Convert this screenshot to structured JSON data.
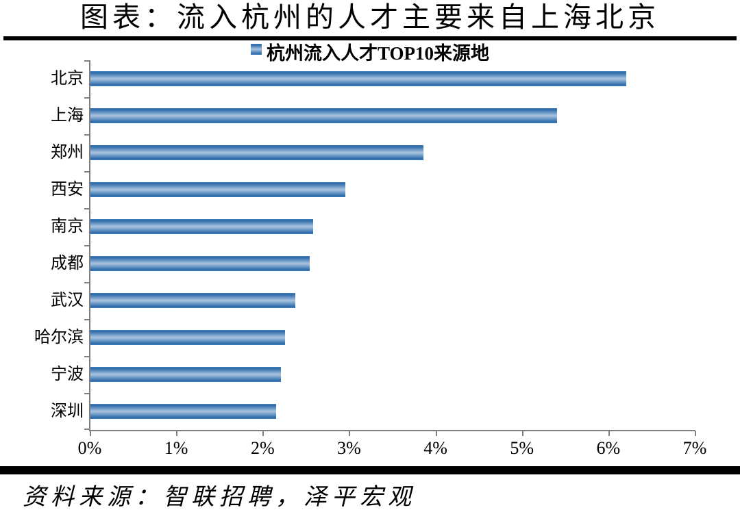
{
  "chart_data": {
    "type": "bar",
    "orientation": "horizontal",
    "title": "图表：流入杭州的人才主要来自上海北京",
    "legend": [
      "杭州流入人才TOP10来源地"
    ],
    "legend_position": "top-center",
    "categories": [
      "北京",
      "上海",
      "郑州",
      "西安",
      "南京",
      "成都",
      "武汉",
      "哈尔滨",
      "宁波",
      "深圳"
    ],
    "values": [
      6.2,
      5.4,
      3.85,
      2.95,
      2.58,
      2.54,
      2.37,
      2.25,
      2.2,
      2.15
    ],
    "value_unit": "%",
    "xlabel": "",
    "ylabel": "",
    "xlim": [
      0,
      7
    ],
    "x_tick_labels": [
      "0%",
      "1%",
      "2%",
      "3%",
      "4%",
      "5%",
      "6%",
      "7%"
    ],
    "grid": false,
    "source_note": "资料来源：智联招聘，泽平宏观",
    "colors": {
      "bar_edge": "#2d6aa9",
      "bar_mid": "#4080bd",
      "bar_light": "#7ea6cf",
      "bar_center": "#abc3dd",
      "axis": "#7f7f7f",
      "text": "#000000",
      "divider": "#000000"
    }
  }
}
